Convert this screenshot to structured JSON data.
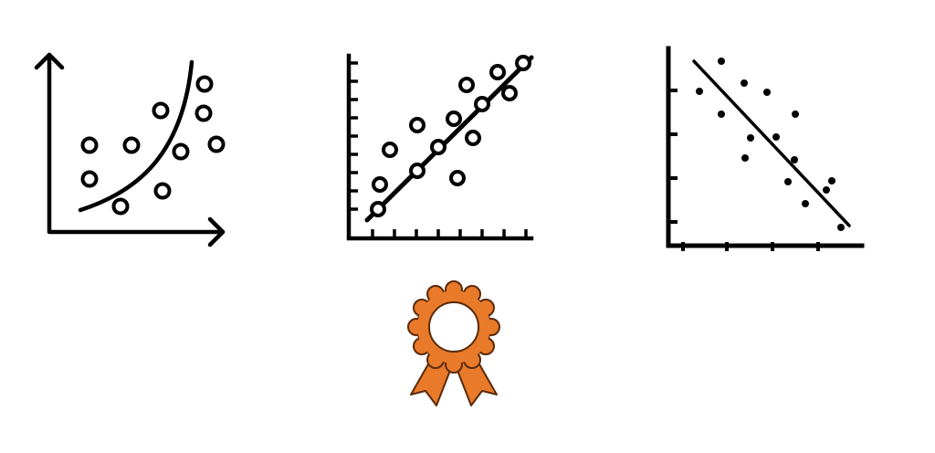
{
  "icons": [
    {
      "name": "scatter-curve-fit-icon"
    },
    {
      "name": "scatter-linear-fit-icon"
    },
    {
      "name": "scatter-negative-trend-icon"
    },
    {
      "name": "award-ribbon-icon"
    }
  ],
  "colors": {
    "stroke": "#000000",
    "background": "#ffffff",
    "accent": "#e87a2a",
    "accent_dark": "#5a2a0a"
  }
}
